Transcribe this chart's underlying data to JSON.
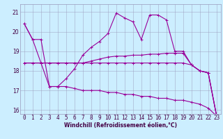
{
  "xlabel": "Windchill (Refroidissement éolien,°C)",
  "line_color": "#990099",
  "bg_color": "#cceeff",
  "grid_color": "#9999bb",
  "xlim": [
    -0.5,
    23.5
  ],
  "ylim": [
    15.8,
    21.4
  ],
  "xticks": [
    0,
    1,
    2,
    3,
    4,
    5,
    6,
    7,
    8,
    9,
    10,
    11,
    12,
    13,
    14,
    15,
    16,
    17,
    18,
    19,
    20,
    21,
    22,
    23
  ],
  "yticks": [
    16,
    17,
    18,
    19,
    20,
    21
  ],
  "line1": [
    20.4,
    19.6,
    19.6,
    17.2,
    17.2,
    17.6,
    18.1,
    18.8,
    19.2,
    19.5,
    19.9,
    20.95,
    20.7,
    20.5,
    19.6,
    20.85,
    20.85,
    20.6,
    19.0,
    19.0,
    18.3,
    18.0,
    17.9,
    15.7
  ],
  "line2": [
    20.4,
    19.6,
    18.4,
    18.4,
    18.4,
    18.4,
    18.4,
    18.4,
    18.5,
    18.6,
    18.7,
    18.75,
    18.75,
    18.8,
    18.8,
    18.85,
    18.85,
    18.9,
    18.9,
    18.9,
    18.3,
    18.0,
    17.9,
    15.7
  ],
  "line3": [
    18.4,
    18.4,
    18.4,
    18.4,
    18.4,
    18.4,
    18.4,
    18.4,
    18.4,
    18.4,
    18.4,
    18.4,
    18.4,
    18.4,
    18.4,
    18.4,
    18.4,
    18.4,
    18.4,
    18.4,
    18.3,
    18.0,
    17.9,
    15.7
  ],
  "line4": [
    18.4,
    18.4,
    18.4,
    17.2,
    17.2,
    17.2,
    17.1,
    17.0,
    17.0,
    17.0,
    16.9,
    16.9,
    16.8,
    16.8,
    16.7,
    16.7,
    16.6,
    16.6,
    16.5,
    16.5,
    16.4,
    16.3,
    16.1,
    15.7
  ],
  "tick_fontsize": 5.5,
  "xlabel_fontsize": 5.5
}
